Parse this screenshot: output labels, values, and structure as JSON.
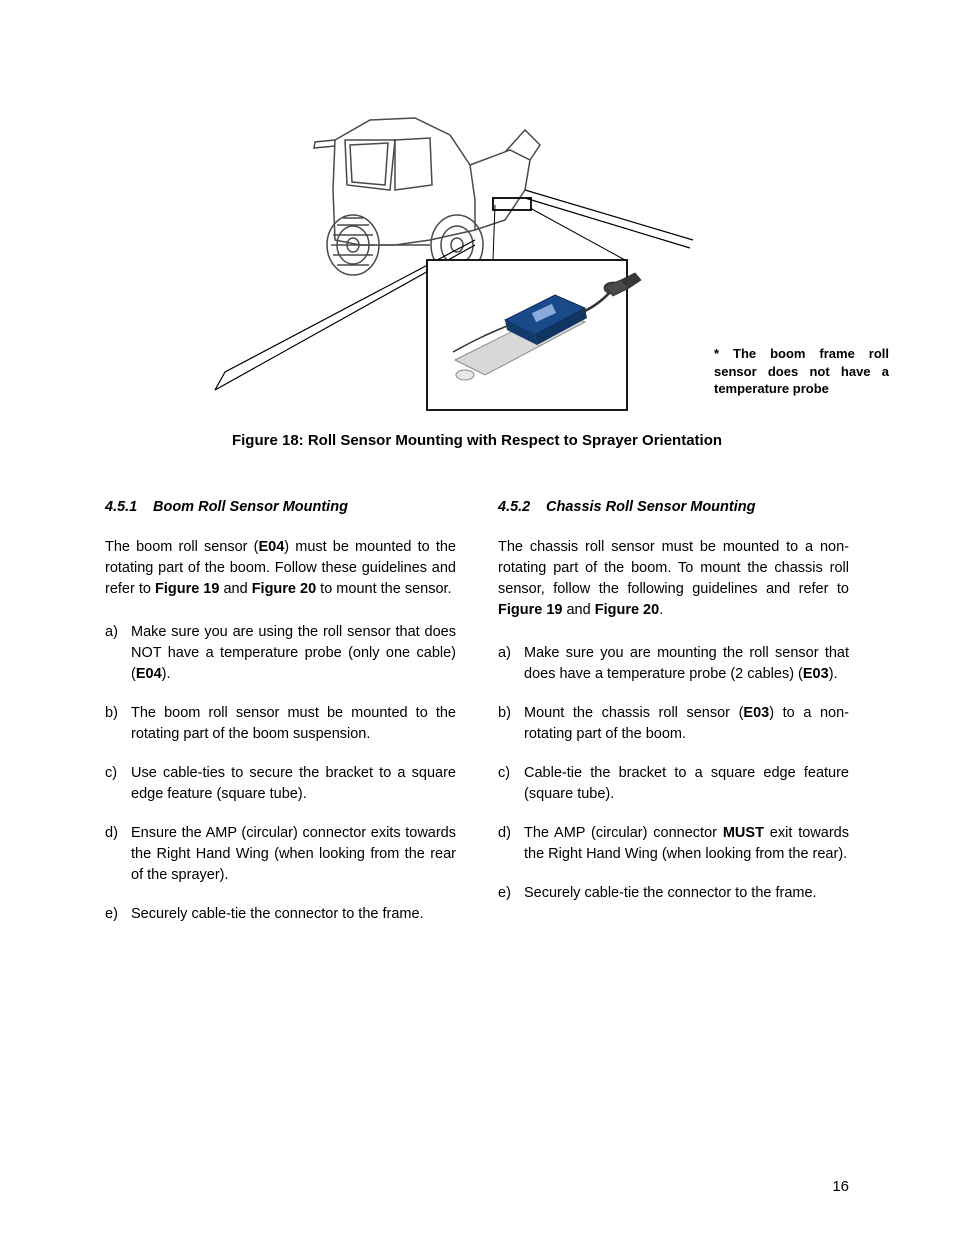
{
  "figure": {
    "callout": "* The boom frame roll sensor does not have a temperature probe",
    "caption": "Figure 18: Roll Sensor Mounting with Respect to Sprayer Orientation",
    "sensor_color": "#1a4a8a",
    "inset_stroke": "#000000",
    "line_stroke": "#000000",
    "tractor_stroke": "#4a4a4a"
  },
  "left": {
    "heading_num": "4.5.1",
    "heading_text": "Boom Roll Sensor Mounting",
    "intro_pre": "The boom roll sensor (",
    "intro_code": "E04",
    "intro_mid": ") must be mounted to the rotating part of the boom. Follow these guidelines and refer to ",
    "intro_fig19": "Figure 19",
    "intro_and": " and ",
    "intro_fig20": "Figure 20",
    "intro_post": " to mount the sensor.",
    "items": [
      {
        "letter": "a)",
        "pre": "Make sure you are using the roll sensor that does NOT have a temperature probe (only one cable) (",
        "bold": "E04",
        "post": ")."
      },
      {
        "letter": "b)",
        "pre": "The boom roll sensor must be mounted to the rotating part of the boom suspension.",
        "bold": "",
        "post": ""
      },
      {
        "letter": "c)",
        "pre": "Use cable-ties to secure the bracket to a square edge feature (square tube).",
        "bold": "",
        "post": ""
      },
      {
        "letter": "d)",
        "pre": "Ensure the AMP (circular) connector exits towards the Right Hand Wing (when looking from the rear of the sprayer).",
        "bold": "",
        "post": ""
      },
      {
        "letter": "e)",
        "pre": "Securely cable-tie the connector to the frame.",
        "bold": "",
        "post": ""
      }
    ]
  },
  "right": {
    "heading_num": "4.5.2",
    "heading_text": "Chassis Roll Sensor Mounting",
    "intro_pre": "The chassis roll sensor must be mounted to a non-rotating part of the boom.  To mount the chassis roll sensor, follow the following guidelines and refer to ",
    "intro_fig19": "Figure 19",
    "intro_and": " and ",
    "intro_fig20": "Figure 20",
    "intro_post": ".",
    "items": [
      {
        "letter": "a)",
        "pre": "Make sure you are mounting the roll sensor that does have a temperature probe (2 cables) (",
        "bold": "E03",
        "post": ")."
      },
      {
        "letter": "b)",
        "pre": "Mount the chassis roll sensor (",
        "bold": "E03",
        "post": ") to a non-rotating part of the boom."
      },
      {
        "letter": "c)",
        "pre": "Cable-tie the bracket to a square edge feature (square tube).",
        "bold": "",
        "post": ""
      },
      {
        "letter": "d)",
        "pre": "The AMP (circular) connector ",
        "bold": "MUST",
        "post": " exit towards the Right Hand Wing (when looking from the rear)."
      },
      {
        "letter": "e)",
        "pre": "Securely cable-tie the connector to the frame.",
        "bold": "",
        "post": ""
      }
    ]
  },
  "page_number": "16"
}
